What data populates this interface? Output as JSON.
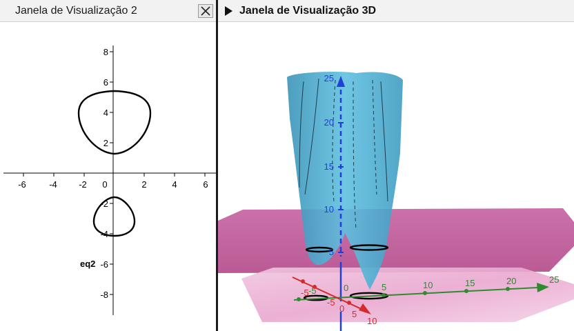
{
  "view2d": {
    "title": "Janela de Visualização 2",
    "x_ticks": [
      "-6",
      "-4",
      "-2",
      "0",
      "2",
      "4",
      "6"
    ],
    "y_ticks": [
      "8",
      "6",
      "4",
      "2",
      "-2",
      "-4",
      "-6",
      "-8"
    ],
    "curve_label": "eq2"
  },
  "view3d": {
    "title": "Janela de Visualização 3D",
    "x_axis_ticks": [
      "-5",
      "5",
      "10"
    ],
    "y_axis_ticks": [
      "5",
      "10",
      "15",
      "20",
      "25"
    ],
    "z_axis_ticks": [
      "5",
      "10",
      "15",
      "20",
      "25"
    ],
    "origin_labels": [
      "-5",
      "-5",
      "0",
      "0"
    ],
    "colors": {
      "surface": "#4aaed3",
      "plane": "#c25a9c",
      "x_axis": "#d42a2a",
      "y_axis": "#2e8b2e",
      "z_axis": "#1f3fd8"
    }
  },
  "icons": {
    "close": "close-icon",
    "collapse": "triangle-right-icon"
  }
}
